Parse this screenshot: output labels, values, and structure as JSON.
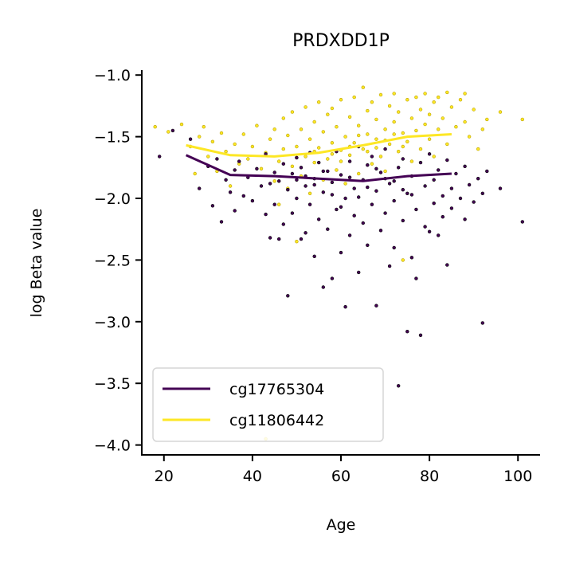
{
  "chart_data": {
    "type": "scatter",
    "title": "PRDXDD1P",
    "xlabel": "Age",
    "ylabel": "log Beta value",
    "xlim": [
      15,
      105
    ],
    "ylim": [
      -4.08,
      -0.96
    ],
    "xticks": [
      20,
      40,
      60,
      80,
      100
    ],
    "xtick_labels": [
      "20",
      "40",
      "60",
      "80",
      "100"
    ],
    "yticks": [
      -1.0,
      -1.5,
      -2.0,
      -2.5,
      -3.0,
      -3.5,
      -4.0
    ],
    "ytick_labels": [
      "−1.0",
      "−1.5",
      "−2.0",
      "−2.5",
      "−3.0",
      "−3.5",
      "−4.0"
    ],
    "grid": false,
    "legend_position": "lower-left",
    "series": [
      {
        "name": "cg17765304",
        "color": "#440154",
        "trend": {
          "x": [
            25,
            35,
            45,
            55,
            65,
            75,
            85
          ],
          "y": [
            -1.65,
            -1.81,
            -1.82,
            -1.84,
            -1.86,
            -1.82,
            -1.8
          ]
        },
        "points": [
          {
            "x": 19,
            "y": -1.66
          },
          {
            "x": 22,
            "y": -1.45
          },
          {
            "x": 26,
            "y": -1.52
          },
          {
            "x": 28,
            "y": -1.92
          },
          {
            "x": 30,
            "y": -1.74
          },
          {
            "x": 31,
            "y": -2.06
          },
          {
            "x": 32,
            "y": -1.68
          },
          {
            "x": 33,
            "y": -2.19
          },
          {
            "x": 34,
            "y": -1.85
          },
          {
            "x": 35,
            "y": -1.95
          },
          {
            "x": 36,
            "y": -1.77
          },
          {
            "x": 36,
            "y": -2.1
          },
          {
            "x": 37,
            "y": -1.7
          },
          {
            "x": 38,
            "y": -1.98
          },
          {
            "x": 39,
            "y": -1.83
          },
          {
            "x": 40,
            "y": -2.02
          },
          {
            "x": 41,
            "y": -1.76
          },
          {
            "x": 42,
            "y": -1.9
          },
          {
            "x": 43,
            "y": -2.13
          },
          {
            "x": 43,
            "y": -1.64
          },
          {
            "x": 44,
            "y": -1.88
          },
          {
            "x": 44,
            "y": -2.32
          },
          {
            "x": 45,
            "y": -1.79
          },
          {
            "x": 45,
            "y": -2.05
          },
          {
            "x": 46,
            "y": -2.33
          },
          {
            "x": 46,
            "y": -1.86
          },
          {
            "x": 47,
            "y": -1.72
          },
          {
            "x": 47,
            "y": -2.21
          },
          {
            "x": 48,
            "y": -2.79
          },
          {
            "x": 48,
            "y": -1.93
          },
          {
            "x": 49,
            "y": -1.8
          },
          {
            "x": 49,
            "y": -2.12
          },
          {
            "x": 50,
            "y": -1.67
          },
          {
            "x": 50,
            "y": -2.0
          },
          {
            "x": 51,
            "y": -2.33
          },
          {
            "x": 51,
            "y": -1.75
          },
          {
            "x": 52,
            "y": -1.9
          },
          {
            "x": 52,
            "y": -2.28
          },
          {
            "x": 53,
            "y": -1.63
          },
          {
            "x": 53,
            "y": -2.05
          },
          {
            "x": 54,
            "y": -1.84
          },
          {
            "x": 54,
            "y": -2.47
          },
          {
            "x": 55,
            "y": -1.71
          },
          {
            "x": 55,
            "y": -2.17
          },
          {
            "x": 56,
            "y": -2.72
          },
          {
            "x": 56,
            "y": -1.95
          },
          {
            "x": 57,
            "y": -1.78
          },
          {
            "x": 57,
            "y": -2.25
          },
          {
            "x": 58,
            "y": -2.65
          },
          {
            "x": 58,
            "y": -1.87
          },
          {
            "x": 59,
            "y": -1.62
          },
          {
            "x": 59,
            "y": -2.09
          },
          {
            "x": 60,
            "y": -2.44
          },
          {
            "x": 60,
            "y": -1.81
          },
          {
            "x": 61,
            "y": -2.0
          },
          {
            "x": 61,
            "y": -2.88
          },
          {
            "x": 62,
            "y": -1.7
          },
          {
            "x": 62,
            "y": -2.3
          },
          {
            "x": 63,
            "y": -1.92
          },
          {
            "x": 63,
            "y": -2.14
          },
          {
            "x": 64,
            "y": -1.58
          },
          {
            "x": 64,
            "y": -2.6
          },
          {
            "x": 65,
            "y": -1.85
          },
          {
            "x": 65,
            "y": -2.2
          },
          {
            "x": 66,
            "y": -1.73
          },
          {
            "x": 66,
            "y": -2.38
          },
          {
            "x": 67,
            "y": -2.05
          },
          {
            "x": 67,
            "y": -1.66
          },
          {
            "x": 68,
            "y": -2.87
          },
          {
            "x": 68,
            "y": -1.94
          },
          {
            "x": 69,
            "y": -2.26
          },
          {
            "x": 69,
            "y": -1.79
          },
          {
            "x": 70,
            "y": -2.12
          },
          {
            "x": 70,
            "y": -1.6
          },
          {
            "x": 71,
            "y": -2.55
          },
          {
            "x": 71,
            "y": -1.88
          },
          {
            "x": 72,
            "y": -2.02
          },
          {
            "x": 72,
            "y": -2.4
          },
          {
            "x": 73,
            "y": -3.52
          },
          {
            "x": 73,
            "y": -1.75
          },
          {
            "x": 74,
            "y": -2.18
          },
          {
            "x": 74,
            "y": -1.68
          },
          {
            "x": 75,
            "y": -3.08
          },
          {
            "x": 75,
            "y": -1.96
          },
          {
            "x": 76,
            "y": -2.48
          },
          {
            "x": 76,
            "y": -1.82
          },
          {
            "x": 77,
            "y": -2.65
          },
          {
            "x": 77,
            "y": -2.09
          },
          {
            "x": 78,
            "y": -1.71
          },
          {
            "x": 78,
            "y": -3.11
          },
          {
            "x": 79,
            "y": -2.23
          },
          {
            "x": 79,
            "y": -1.9
          },
          {
            "x": 80,
            "y": -2.27
          },
          {
            "x": 80,
            "y": -1.64
          },
          {
            "x": 81,
            "y": -2.04
          },
          {
            "x": 81,
            "y": -1.85
          },
          {
            "x": 82,
            "y": -2.3
          },
          {
            "x": 82,
            "y": -1.77
          },
          {
            "x": 83,
            "y": -1.98
          },
          {
            "x": 83,
            "y": -2.15
          },
          {
            "x": 84,
            "y": -1.69
          },
          {
            "x": 84,
            "y": -2.54
          },
          {
            "x": 85,
            "y": -1.92
          },
          {
            "x": 85,
            "y": -2.08
          },
          {
            "x": 86,
            "y": -1.8
          },
          {
            "x": 87,
            "y": -2.0
          },
          {
            "x": 88,
            "y": -1.74
          },
          {
            "x": 88,
            "y": -2.17
          },
          {
            "x": 89,
            "y": -1.89
          },
          {
            "x": 90,
            "y": -2.03
          },
          {
            "x": 91,
            "y": -1.84
          },
          {
            "x": 92,
            "y": -3.01
          },
          {
            "x": 92,
            "y": -1.96
          },
          {
            "x": 93,
            "y": -1.78
          },
          {
            "x": 96,
            "y": -1.92
          },
          {
            "x": 101,
            "y": -2.19
          },
          {
            "x": 62,
            "y": -1.83
          },
          {
            "x": 58,
            "y": -1.97
          },
          {
            "x": 66,
            "y": -1.91
          },
          {
            "x": 54,
            "y": -1.89
          },
          {
            "x": 70,
            "y": -1.84
          },
          {
            "x": 74,
            "y": -1.93
          },
          {
            "x": 50,
            "y": -1.85
          },
          {
            "x": 64,
            "y": -1.99
          },
          {
            "x": 56,
            "y": -1.78
          },
          {
            "x": 68,
            "y": -1.76
          },
          {
            "x": 60,
            "y": -2.07
          },
          {
            "x": 72,
            "y": -1.86
          },
          {
            "x": 76,
            "y": -1.97
          },
          {
            "x": 52,
            "y": -1.82
          }
        ]
      },
      {
        "name": "cg11806442",
        "color": "#fde725",
        "trend": {
          "x": [
            25,
            35,
            45,
            55,
            65,
            75,
            85
          ],
          "y": [
            -1.57,
            -1.65,
            -1.66,
            -1.63,
            -1.57,
            -1.5,
            -1.48
          ]
        },
        "points": [
          {
            "x": 18,
            "y": -1.42
          },
          {
            "x": 21,
            "y": -1.46
          },
          {
            "x": 24,
            "y": -1.4
          },
          {
            "x": 26,
            "y": -1.58
          },
          {
            "x": 27,
            "y": -1.8
          },
          {
            "x": 28,
            "y": -1.5
          },
          {
            "x": 29,
            "y": -1.42
          },
          {
            "x": 30,
            "y": -1.66
          },
          {
            "x": 31,
            "y": -1.54
          },
          {
            "x": 32,
            "y": -1.78
          },
          {
            "x": 33,
            "y": -1.47
          },
          {
            "x": 34,
            "y": -1.62
          },
          {
            "x": 35,
            "y": -1.9
          },
          {
            "x": 36,
            "y": -1.56
          },
          {
            "x": 37,
            "y": -1.72
          },
          {
            "x": 38,
            "y": -1.48
          },
          {
            "x": 39,
            "y": -1.68
          },
          {
            "x": 40,
            "y": -1.58
          },
          {
            "x": 41,
            "y": -1.41
          },
          {
            "x": 42,
            "y": -1.76
          },
          {
            "x": 43,
            "y": -1.63
          },
          {
            "x": 43,
            "y": -3.95
          },
          {
            "x": 44,
            "y": -1.52
          },
          {
            "x": 45,
            "y": -1.86
          },
          {
            "x": 45,
            "y": -1.44
          },
          {
            "x": 46,
            "y": -1.7
          },
          {
            "x": 46,
            "y": -2.05
          },
          {
            "x": 47,
            "y": -1.35
          },
          {
            "x": 47,
            "y": -1.6
          },
          {
            "x": 48,
            "y": -1.92
          },
          {
            "x": 48,
            "y": -1.49
          },
          {
            "x": 49,
            "y": -1.74
          },
          {
            "x": 49,
            "y": -1.3
          },
          {
            "x": 50,
            "y": -1.58
          },
          {
            "x": 50,
            "y": -2.35
          },
          {
            "x": 51,
            "y": -1.44
          },
          {
            "x": 51,
            "y": -1.82
          },
          {
            "x": 52,
            "y": -1.26
          },
          {
            "x": 52,
            "y": -1.66
          },
          {
            "x": 53,
            "y": -1.52
          },
          {
            "x": 53,
            "y": -1.96
          },
          {
            "x": 54,
            "y": -1.38
          },
          {
            "x": 54,
            "y": -1.71
          },
          {
            "x": 55,
            "y": -1.22
          },
          {
            "x": 55,
            "y": -1.59
          },
          {
            "x": 56,
            "y": -1.85
          },
          {
            "x": 56,
            "y": -1.46
          },
          {
            "x": 57,
            "y": -1.32
          },
          {
            "x": 57,
            "y": -1.68
          },
          {
            "x": 58,
            "y": -1.55
          },
          {
            "x": 58,
            "y": -1.27
          },
          {
            "x": 59,
            "y": -1.77
          },
          {
            "x": 59,
            "y": -1.42
          },
          {
            "x": 60,
            "y": -1.61
          },
          {
            "x": 60,
            "y": -1.2
          },
          {
            "x": 61,
            "y": -1.5
          },
          {
            "x": 61,
            "y": -1.88
          },
          {
            "x": 62,
            "y": -1.34
          },
          {
            "x": 62,
            "y": -1.65
          },
          {
            "x": 63,
            "y": -1.18
          },
          {
            "x": 63,
            "y": -1.55
          },
          {
            "x": 64,
            "y": -1.41
          },
          {
            "x": 64,
            "y": -1.8
          },
          {
            "x": 65,
            "y": -1.1
          },
          {
            "x": 65,
            "y": -1.6
          },
          {
            "x": 66,
            "y": -1.29
          },
          {
            "x": 66,
            "y": -1.48
          },
          {
            "x": 67,
            "y": -1.72
          },
          {
            "x": 67,
            "y": -1.22
          },
          {
            "x": 68,
            "y": -1.52
          },
          {
            "x": 68,
            "y": -1.36
          },
          {
            "x": 69,
            "y": -1.66
          },
          {
            "x": 69,
            "y": -1.16
          },
          {
            "x": 70,
            "y": -1.44
          },
          {
            "x": 70,
            "y": -1.78
          },
          {
            "x": 71,
            "y": -1.25
          },
          {
            "x": 71,
            "y": -1.56
          },
          {
            "x": 72,
            "y": -1.38
          },
          {
            "x": 72,
            "y": -1.15
          },
          {
            "x": 73,
            "y": -1.62
          },
          {
            "x": 73,
            "y": -1.3
          },
          {
            "x": 74,
            "y": -1.47
          },
          {
            "x": 74,
            "y": -2.5
          },
          {
            "x": 75,
            "y": -1.2
          },
          {
            "x": 75,
            "y": -1.54
          },
          {
            "x": 76,
            "y": -1.35
          },
          {
            "x": 76,
            "y": -1.7
          },
          {
            "x": 77,
            "y": -1.18
          },
          {
            "x": 77,
            "y": -1.45
          },
          {
            "x": 78,
            "y": -1.6
          },
          {
            "x": 78,
            "y": -1.28
          },
          {
            "x": 79,
            "y": -1.4
          },
          {
            "x": 79,
            "y": -1.15
          },
          {
            "x": 80,
            "y": -1.52
          },
          {
            "x": 80,
            "y": -1.32
          },
          {
            "x": 81,
            "y": -1.22
          },
          {
            "x": 81,
            "y": -1.66
          },
          {
            "x": 82,
            "y": -1.44
          },
          {
            "x": 82,
            "y": -1.18
          },
          {
            "x": 83,
            "y": -1.35
          },
          {
            "x": 84,
            "y": -1.14
          },
          {
            "x": 84,
            "y": -1.56
          },
          {
            "x": 85,
            "y": -1.26
          },
          {
            "x": 86,
            "y": -1.42
          },
          {
            "x": 87,
            "y": -1.2
          },
          {
            "x": 88,
            "y": -1.38
          },
          {
            "x": 88,
            "y": -1.15
          },
          {
            "x": 89,
            "y": -1.5
          },
          {
            "x": 90,
            "y": -1.28
          },
          {
            "x": 91,
            "y": -1.6
          },
          {
            "x": 92,
            "y": -1.44
          },
          {
            "x": 93,
            "y": -1.36
          },
          {
            "x": 96,
            "y": -1.3
          },
          {
            "x": 101,
            "y": -1.36
          },
          {
            "x": 58,
            "y": -1.64
          },
          {
            "x": 62,
            "y": -1.58
          },
          {
            "x": 66,
            "y": -1.62
          },
          {
            "x": 70,
            "y": -1.53
          },
          {
            "x": 74,
            "y": -1.58
          },
          {
            "x": 54,
            "y": -1.62
          },
          {
            "x": 60,
            "y": -1.7
          },
          {
            "x": 64,
            "y": -1.49
          },
          {
            "x": 68,
            "y": -1.59
          },
          {
            "x": 72,
            "y": -1.48
          },
          {
            "x": 50,
            "y": -1.67
          }
        ]
      }
    ]
  }
}
